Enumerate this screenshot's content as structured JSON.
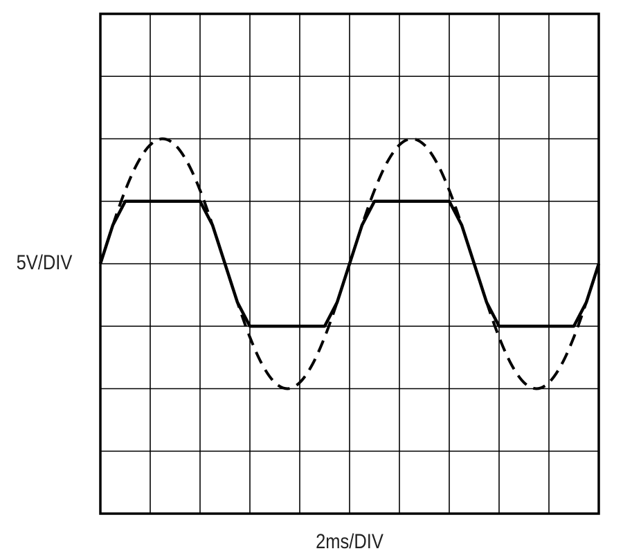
{
  "chart_data": {
    "type": "line",
    "xlabel": "2ms/DIV",
    "ylabel": "5V/DIV",
    "x": [
      0,
      0.5,
      1,
      1.5,
      2,
      2.5,
      3,
      3.5,
      4,
      4.5,
      5,
      5.5,
      6,
      6.5,
      7,
      7.5,
      8,
      8.5,
      9,
      9.5,
      10,
      10.5,
      11,
      11.5,
      12,
      12.5,
      13,
      13.5,
      14,
      14.5,
      15,
      15.5,
      16,
      16.5,
      17,
      17.5,
      18,
      18.5,
      19,
      19.5,
      20
    ],
    "series": [
      {
        "color": "#000000",
        "style": "dashed",
        "values": [
          0,
          3.09,
          5.88,
          8.09,
          9.51,
          10,
          9.51,
          8.09,
          5.88,
          3.09,
          0,
          -3.09,
          -5.88,
          -8.09,
          -9.51,
          -10,
          -9.51,
          -8.09,
          -5.88,
          -3.09,
          0,
          3.09,
          5.88,
          8.09,
          9.51,
          10,
          9.51,
          8.09,
          5.88,
          3.09,
          0,
          -3.09,
          -5.88,
          -8.09,
          -9.51,
          -10,
          -9.51,
          -8.09,
          -5.88,
          -3.09,
          0
        ]
      },
      {
        "color": "#000000",
        "style": "solid",
        "values": [
          0,
          3.09,
          5,
          5,
          5,
          5,
          5,
          5,
          5,
          3.09,
          0,
          -3.09,
          -5,
          -5,
          -5,
          -5,
          -5,
          -5,
          -5,
          -3.09,
          0,
          3.09,
          5,
          5,
          5,
          5,
          5,
          5,
          5,
          3.09,
          0,
          -3.09,
          -5,
          -5,
          -5,
          -5,
          -5,
          -5,
          -5,
          -3.09,
          0
        ]
      }
    ],
    "xlim": [
      0,
      20
    ],
    "ylim": [
      -20,
      20
    ],
    "xticks": [
      0,
      2,
      4,
      6,
      8,
      10,
      12,
      14,
      16,
      18,
      20
    ],
    "yticks": [
      -20,
      -15,
      -10,
      -5,
      0,
      5,
      10,
      15,
      20
    ],
    "grid": true
  }
}
